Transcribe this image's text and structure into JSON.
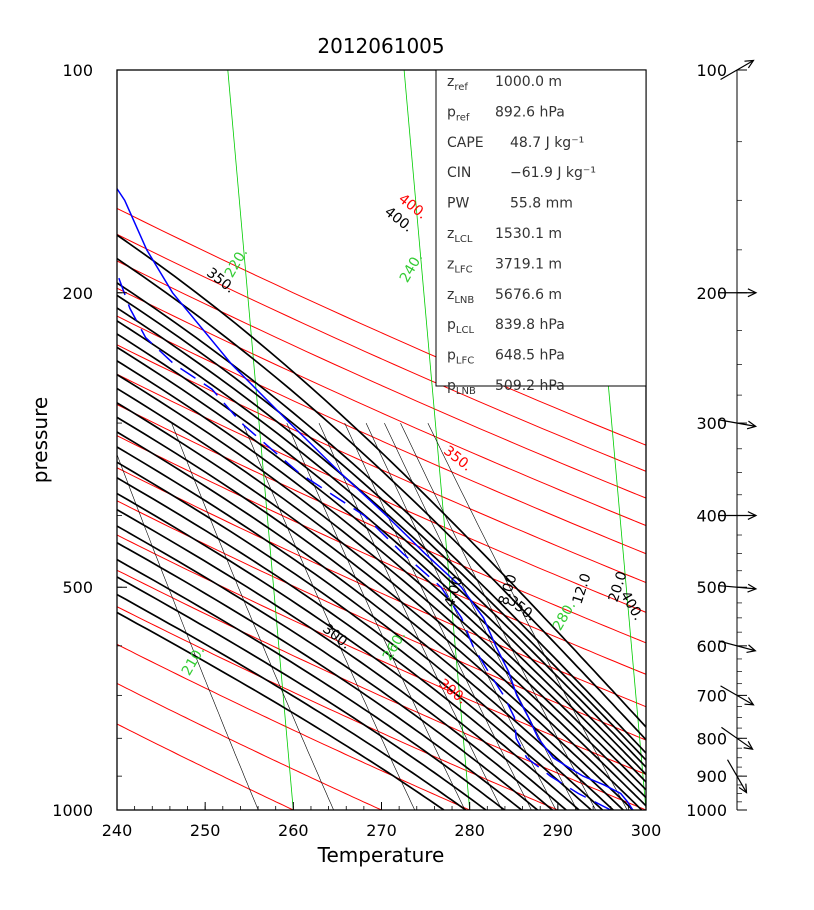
{
  "title": "2012061005",
  "chart_data": {
    "type": "skew-t",
    "title": "2012061005",
    "xlabel": "Temperature",
    "ylabel": "pressure",
    "xlim": [
      240,
      300
    ],
    "ylim": [
      1000,
      100
    ],
    "log_scale_y": true,
    "x_ticks": [
      "240",
      "250",
      "260",
      "270",
      "280",
      "290",
      "300"
    ],
    "y_ticks": [
      {
        "p": 100,
        "label": "100"
      },
      {
        "p": 200,
        "label": "200"
      },
      {
        "p": 500,
        "label": "500"
      },
      {
        "p": 1000,
        "label": "1000"
      }
    ],
    "colors": {
      "frame": "#000000",
      "temperature": "#0000ff",
      "dewpoint": "#0000ff",
      "dry_adiabat": "#ff0000",
      "moist_adiabat": "#000000",
      "isotherm": "#00cc00",
      "mixing_ratio": "#000000",
      "dry_label": "#ff0000",
      "isotherm_label": "#33cc33"
    },
    "dry_adiabats": [
      {
        "theta": 260,
        "label": ""
      },
      {
        "theta": 270,
        "label": ""
      },
      {
        "theta": 280,
        "label": ""
      },
      {
        "theta": 290,
        "label": ""
      },
      {
        "theta": 300,
        "label": "300."
      },
      {
        "theta": 310,
        "label": ""
      },
      {
        "theta": 320,
        "label": ""
      },
      {
        "theta": 330,
        "label": ""
      },
      {
        "theta": 340,
        "label": ""
      },
      {
        "theta": 350,
        "label": "350."
      },
      {
        "theta": 360,
        "label": ""
      },
      {
        "theta": 370,
        "label": ""
      },
      {
        "theta": 380,
        "label": ""
      },
      {
        "theta": 390,
        "label": ""
      },
      {
        "theta": 400,
        "label": "400."
      },
      {
        "theta": 410,
        "label": ""
      },
      {
        "theta": 420,
        "label": ""
      }
    ],
    "isotherms": [
      {
        "t": 120,
        "label": ""
      },
      {
        "t": 140,
        "label": ""
      },
      {
        "t": 160,
        "label": ""
      },
      {
        "t": 180,
        "label": ""
      },
      {
        "t": 200,
        "label": ""
      },
      {
        "t": 220,
        "label": "220."
      },
      {
        "t": 240,
        "label": "240."
      },
      {
        "t": 260,
        "label": "260."
      },
      {
        "t": 280,
        "label": "280."
      }
    ],
    "isotherm_label_210": "210.",
    "moist_adiabats": [
      {
        "theta_e": 290
      },
      {
        "theta_e": 295
      },
      {
        "theta_e": 300
      },
      {
        "theta_e": 305
      },
      {
        "theta_e": 310
      },
      {
        "theta_e": 315
      },
      {
        "theta_e": 320
      },
      {
        "theta_e": 325
      },
      {
        "theta_e": 330
      },
      {
        "theta_e": 335
      },
      {
        "theta_e": 340
      },
      {
        "theta_e": 345
      },
      {
        "theta_e": 350
      },
      {
        "theta_e": 355
      },
      {
        "theta_e": 360
      },
      {
        "theta_e": 365
      },
      {
        "theta_e": 370
      },
      {
        "theta_e": 375
      },
      {
        "theta_e": 380
      },
      {
        "theta_e": 385
      },
      {
        "theta_e": 390
      },
      {
        "theta_e": 395
      },
      {
        "theta_e": 400
      },
      {
        "theta_e": 410
      },
      {
        "theta_e": 420
      }
    ],
    "moist_labels": [
      "300.",
      "350.",
      "350.",
      "400.",
      "400."
    ],
    "mixing_ratios": [
      {
        "w": 1.0,
        "label": ""
      },
      {
        "w": 2.0,
        "label": ""
      },
      {
        "w": 4.0,
        "label": "4.00"
      },
      {
        "w": 6.0,
        "label": ""
      },
      {
        "w": 8.0,
        "label": "8.00"
      },
      {
        "w": 10.0,
        "label": ""
      },
      {
        "w": 12.0,
        "label": "12.0"
      },
      {
        "w": 14.0,
        "label": ""
      },
      {
        "w": 16.0,
        "label": ""
      },
      {
        "w": 20.0,
        "label": "20.0"
      }
    ],
    "temperature_profile": [
      [
        1000,
        298.5
      ],
      [
        975,
        298.0
      ],
      [
        950,
        297.3
      ],
      [
        925,
        295.5
      ],
      [
        900,
        293.2
      ],
      [
        875,
        291.6
      ],
      [
        850,
        290.0
      ],
      [
        800,
        288.5
      ],
      [
        750,
        287.6
      ],
      [
        700,
        286.5
      ],
      [
        650,
        285.8
      ],
      [
        600,
        284.6
      ],
      [
        550,
        283.5
      ],
      [
        500,
        281.3
      ],
      [
        450,
        277.5
      ],
      [
        400,
        273.5
      ],
      [
        350,
        268.7
      ],
      [
        300,
        263.5
      ],
      [
        250,
        257.5
      ],
      [
        200,
        251.5
      ],
      [
        175,
        249.0
      ],
      [
        150,
        247.0
      ],
      [
        130,
        244.0
      ],
      [
        115,
        242.5
      ],
      [
        100,
        241.5
      ]
    ],
    "dewpoint_profile": [
      [
        1000,
        296.0
      ],
      [
        950,
        292.5
      ],
      [
        900,
        289.5
      ],
      [
        850,
        287.0
      ],
      [
        800,
        286.0
      ],
      [
        750,
        286.0
      ],
      [
        700,
        285.0
      ],
      [
        650,
        283.5
      ],
      [
        600,
        282.0
      ],
      [
        550,
        281.0
      ],
      [
        500,
        279.0
      ],
      [
        450,
        275.0
      ],
      [
        400,
        271.0
      ],
      [
        350,
        264.0
      ],
      [
        300,
        258.0
      ],
      [
        270,
        255.0
      ],
      [
        250,
        251.0
      ],
      [
        230,
        248.0
      ],
      [
        210,
        246.5
      ],
      [
        190,
        245.5
      ],
      [
        170,
        245.0
      ],
      [
        160,
        242.0
      ],
      [
        150,
        241.0
      ]
    ],
    "info_table": [
      {
        "label": "z",
        "sub": "ref",
        "value": "1000.0 m"
      },
      {
        "label": "p",
        "sub": "ref",
        "value": "892.6 hPa"
      },
      {
        "label": "CAPE",
        "sub": "",
        "value": "48.7 J kg⁻¹"
      },
      {
        "label": "CIN",
        "sub": "",
        "value": "−61.9 J kg⁻¹"
      },
      {
        "label": "PW",
        "sub": "",
        "value": "55.8 mm"
      },
      {
        "label": "z",
        "sub": "LCL",
        "value": "1530.1 m"
      },
      {
        "label": "z",
        "sub": "LFC",
        "value": "3719.1 m"
      },
      {
        "label": "z",
        "sub": "LNB",
        "value": "5676.6 m"
      },
      {
        "label": "p",
        "sub": "LCL",
        "value": "839.8 hPa"
      },
      {
        "label": "p",
        "sub": "LFC",
        "value": "648.5 hPa"
      },
      {
        "label": "p",
        "sub": "LNB",
        "value": "509.2 hPa"
      }
    ],
    "wind_axis_ticks": [
      "100",
      "200",
      "300",
      "400",
      "500",
      "600",
      "700",
      "800",
      "900",
      "1000"
    ],
    "wind_barbs": [
      {
        "p": 100,
        "dir_deg": 300
      },
      {
        "p": 200,
        "dir_deg": 270
      },
      {
        "p": 300,
        "dir_deg": 260
      },
      {
        "p": 400,
        "dir_deg": 270
      },
      {
        "p": 500,
        "dir_deg": 265
      },
      {
        "p": 600,
        "dir_deg": 255
      },
      {
        "p": 700,
        "dir_deg": 240
      },
      {
        "p": 800,
        "dir_deg": 235
      },
      {
        "p": 900,
        "dir_deg": 210
      }
    ]
  }
}
